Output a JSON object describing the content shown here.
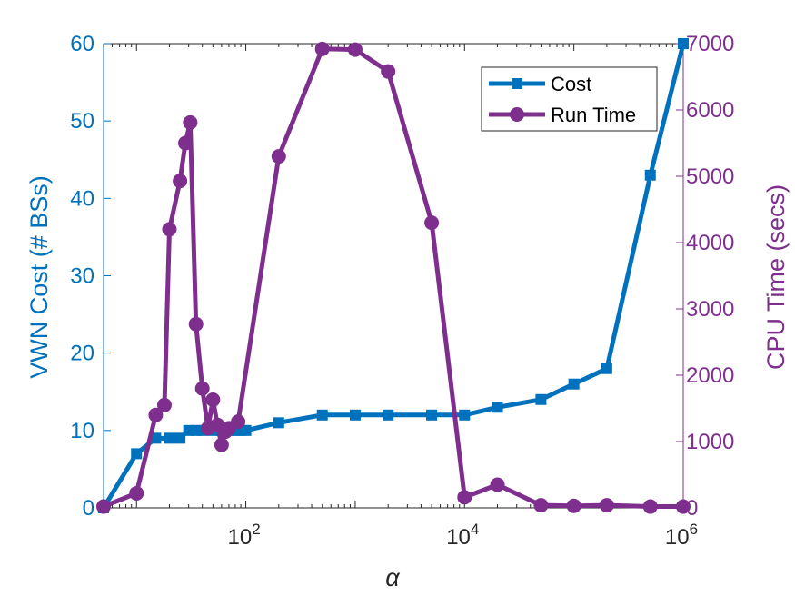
{
  "chart_data": {
    "type": "line",
    "xscale": "log",
    "xlim": [
      5,
      1000000
    ],
    "x_ticks": [
      {
        "value": 100,
        "base": "10",
        "exp": "2"
      },
      {
        "value": 10000,
        "base": "10",
        "exp": "4"
      },
      {
        "value": 1000000,
        "base": "10",
        "exp": "6"
      }
    ],
    "xlabel": "α",
    "left_axis": {
      "label": "VWN Cost (# BSs)",
      "ylim": [
        0,
        60
      ],
      "ticks": [
        "0",
        "10",
        "20",
        "30",
        "40",
        "50",
        "60"
      ],
      "color": "#0072BD"
    },
    "right_axis": {
      "label": "CPU Time (secs)",
      "ylim": [
        0,
        7000
      ],
      "ticks": [
        "0",
        "1000",
        "2000",
        "3000",
        "4000",
        "5000",
        "6000",
        "7000"
      ],
      "color": "#7E2F8E"
    },
    "series": [
      {
        "name": "Cost",
        "axis": "left",
        "color": "#0072BD",
        "marker": "square",
        "points": [
          [
            5,
            0
          ],
          [
            10,
            7
          ],
          [
            15,
            9
          ],
          [
            20,
            9
          ],
          [
            25,
            9
          ],
          [
            30,
            10
          ],
          [
            35,
            10
          ],
          [
            40,
            10
          ],
          [
            50,
            10
          ],
          [
            60,
            10
          ],
          [
            70,
            10
          ],
          [
            80,
            10
          ],
          [
            90,
            10
          ],
          [
            100,
            10
          ],
          [
            200,
            11
          ],
          [
            500,
            12
          ],
          [
            1000,
            12
          ],
          [
            2000,
            12
          ],
          [
            5000,
            12
          ],
          [
            10000,
            12
          ],
          [
            20000,
            13
          ],
          [
            50000,
            14
          ],
          [
            100000,
            16
          ],
          [
            200000,
            18
          ],
          [
            500000,
            43
          ],
          [
            1000000,
            60
          ]
        ]
      },
      {
        "name": "Run Time",
        "axis": "right",
        "color": "#7E2F8E",
        "marker": "circle",
        "points": [
          [
            5,
            20
          ],
          [
            10,
            220
          ],
          [
            15,
            1400
          ],
          [
            18,
            1550
          ],
          [
            20,
            4200
          ],
          [
            25,
            4930
          ],
          [
            28,
            5500
          ],
          [
            31,
            5810
          ],
          [
            35,
            2770
          ],
          [
            40,
            1800
          ],
          [
            45,
            1200
          ],
          [
            50,
            1630
          ],
          [
            55,
            1250
          ],
          [
            60,
            950
          ],
          [
            65,
            1150
          ],
          [
            70,
            1200
          ],
          [
            85,
            1300
          ],
          [
            200,
            5300
          ],
          [
            500,
            6920
          ],
          [
            1000,
            6910
          ],
          [
            2000,
            6580
          ],
          [
            5000,
            4300
          ],
          [
            10000,
            160
          ],
          [
            20000,
            350
          ],
          [
            50000,
            40
          ],
          [
            100000,
            30
          ],
          [
            200000,
            40
          ],
          [
            500000,
            20
          ],
          [
            1000000,
            20
          ]
        ]
      }
    ],
    "legend": {
      "position": "top-right",
      "entries": [
        "Cost",
        "Run Time"
      ]
    },
    "grid": false
  }
}
